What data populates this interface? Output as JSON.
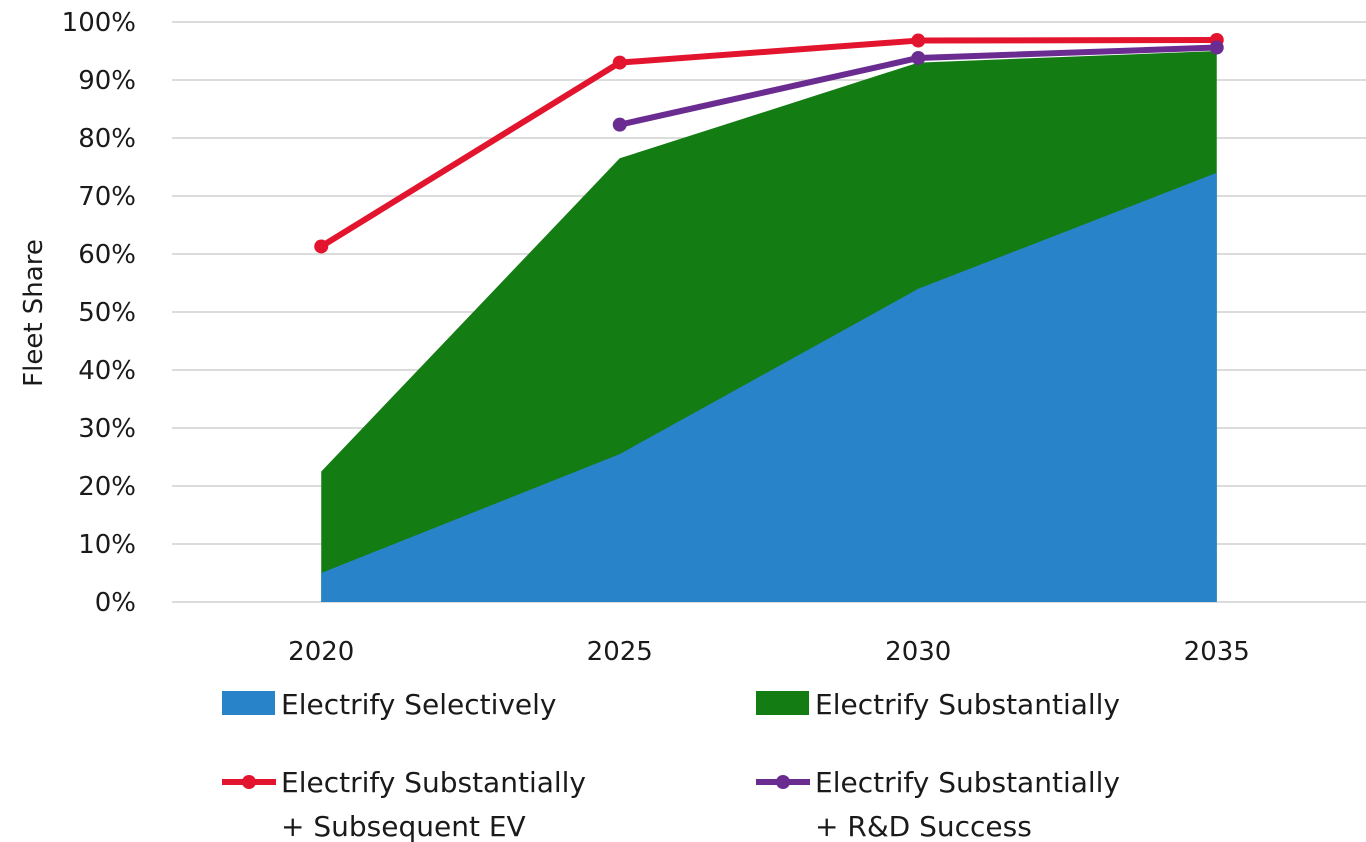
{
  "chart_data": {
    "type": "area",
    "x": [
      "2020",
      "2025",
      "2030",
      "2035"
    ],
    "ylabel": "Fleet Share",
    "ylim": [
      0,
      100
    ],
    "yticks": [
      "0%",
      "10%",
      "20%",
      "30%",
      "40%",
      "50%",
      "60%",
      "70%",
      "80%",
      "90%",
      "100%"
    ],
    "grid": "horizontal",
    "legend_position": "bottom",
    "series": [
      {
        "name": "Electrify Selectively",
        "kind": "area",
        "color": "#2883c8",
        "values": [
          5,
          25.5,
          54,
          74
        ]
      },
      {
        "name": "Electrify Substantially",
        "kind": "area",
        "color": "#137d13",
        "values": [
          22.5,
          76.5,
          93,
          95
        ]
      },
      {
        "name": "Electrify Substantially + Subsequent EV",
        "kind": "line",
        "color": "#e3142d",
        "values": [
          61.3,
          93,
          96.8,
          96.9
        ]
      },
      {
        "name": "Electrify Substantially + R&D Success",
        "kind": "line",
        "color": "#6a2c91",
        "values": [
          null,
          82.3,
          93.8,
          95.6
        ]
      }
    ]
  },
  "legend": {
    "items": [
      {
        "lines": [
          "Electrify Selectively"
        ]
      },
      {
        "lines": [
          "Electrify Substantially"
        ]
      },
      {
        "lines": [
          "Electrify Substantially",
          "+ Subsequent EV"
        ]
      },
      {
        "lines": [
          "Electrify Substantially",
          "+ R&D Success"
        ]
      }
    ]
  }
}
